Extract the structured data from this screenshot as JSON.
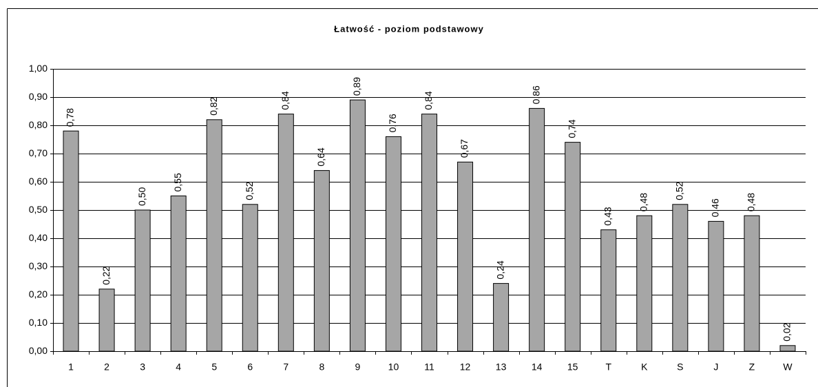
{
  "chart_data": {
    "type": "bar",
    "title": "Łatwość - poziom podstawowy",
    "categories": [
      "1",
      "2",
      "3",
      "4",
      "5",
      "6",
      "7",
      "8",
      "9",
      "10",
      "11",
      "12",
      "13",
      "14",
      "15",
      "T",
      "K",
      "S",
      "J",
      "Z",
      "W"
    ],
    "values": [
      0.78,
      0.22,
      0.5,
      0.55,
      0.82,
      0.52,
      0.84,
      0.64,
      0.89,
      0.76,
      0.84,
      0.67,
      0.24,
      0.86,
      0.74,
      0.43,
      0.48,
      0.52,
      0.46,
      0.48,
      0.02
    ],
    "value_labels": [
      "0,78",
      "0,22",
      "0,50",
      "0,55",
      "0,82",
      "0,52",
      "0,84",
      "0,64",
      "0,89",
      "0,76",
      "0,84",
      "0,67",
      "0,24",
      "0,86",
      "0,74",
      "0,43",
      "0,48",
      "0,52",
      "0,46",
      "0,48",
      "0,02"
    ],
    "color": "#a6a6a6",
    "ylim": [
      0,
      1
    ],
    "yticks": [
      {
        "value": 0,
        "label": "0,00"
      },
      {
        "value": 0.1,
        "label": "0,10"
      },
      {
        "value": 0.2,
        "label": "0,20"
      },
      {
        "value": 0.3,
        "label": "0,30"
      },
      {
        "value": 0.4,
        "label": "0,40"
      },
      {
        "value": 0.5,
        "label": "0,50"
      },
      {
        "value": 0.6,
        "label": "0,60"
      },
      {
        "value": 0.7,
        "label": "0,70"
      },
      {
        "value": 0.8,
        "label": "0,80"
      },
      {
        "value": 0.9,
        "label": "0,90"
      },
      {
        "value": 1,
        "label": "1,00"
      }
    ],
    "grid": true
  }
}
